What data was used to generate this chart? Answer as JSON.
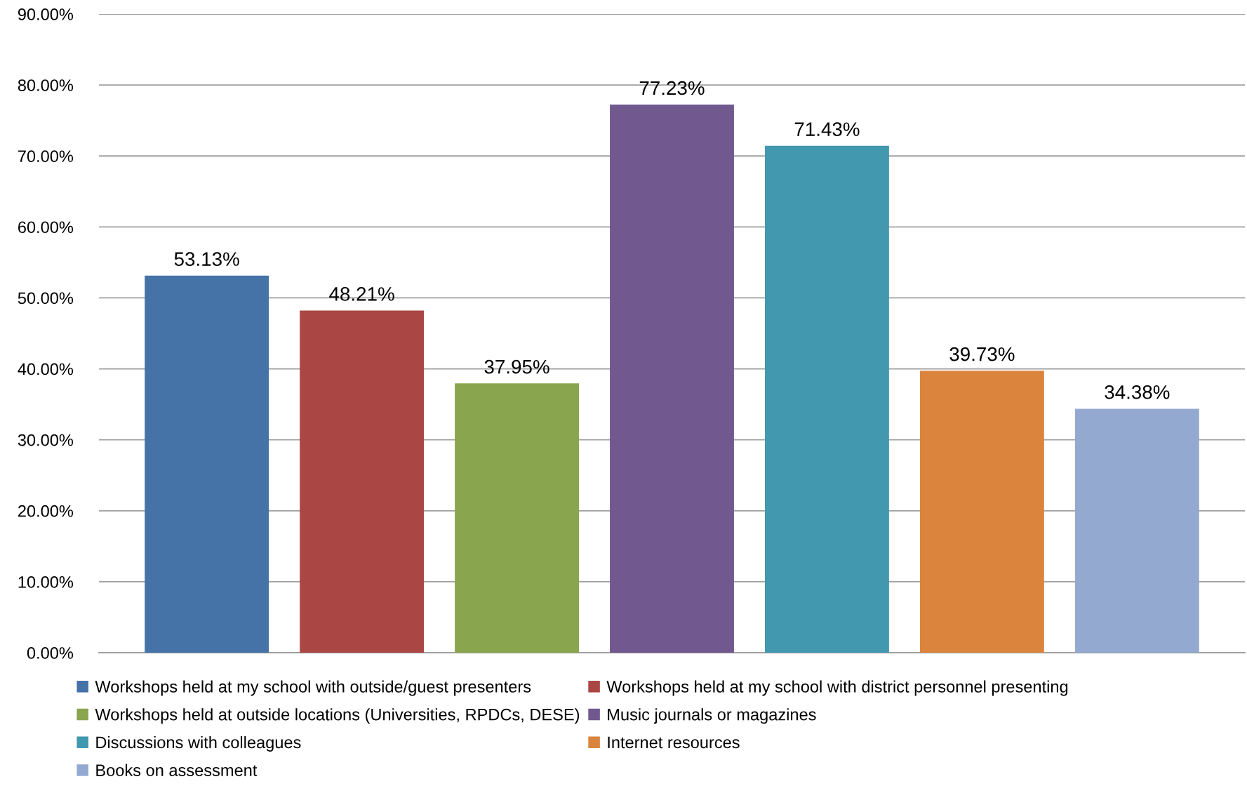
{
  "chart_data": {
    "type": "bar",
    "categories": [
      null
    ],
    "series": [
      {
        "name": "Workshops held at my school with outside/guest presenters",
        "color": "#4572a7",
        "values": [
          53.13
        ],
        "value_labels": [
          "53.13%"
        ]
      },
      {
        "name": "Workshops held at my school with district personnel presenting",
        "color": "#aa4643",
        "values": [
          48.21
        ],
        "value_labels": [
          "48.21%"
        ]
      },
      {
        "name": "Workshops held at outside locations (Universities, RPDCs, DESE)",
        "color": "#89a54e",
        "values": [
          37.95
        ],
        "value_labels": [
          "37.95%"
        ]
      },
      {
        "name": "Music journals or magazines",
        "color": "#71588f",
        "values": [
          77.23
        ],
        "value_labels": [
          "77.23%"
        ]
      },
      {
        "name": "Discussions with colleagues",
        "color": "#4198af",
        "values": [
          71.43
        ],
        "value_labels": [
          "71.43%"
        ]
      },
      {
        "name": "Internet resources",
        "color": "#db843d",
        "values": [
          39.73
        ],
        "value_labels": [
          "39.73%"
        ]
      },
      {
        "name": "Books on assessment",
        "color": "#93a9cf",
        "values": [
          34.38
        ],
        "value_labels": [
          "34.38%"
        ]
      }
    ],
    "ylim": [
      0,
      90
    ],
    "yticks": [
      {
        "value": 0,
        "label": "0.00%"
      },
      {
        "value": 10,
        "label": "10.00%"
      },
      {
        "value": 20,
        "label": "20.00%"
      },
      {
        "value": 30,
        "label": "30.00%"
      },
      {
        "value": 40,
        "label": "40.00%"
      },
      {
        "value": 50,
        "label": "50.00%"
      },
      {
        "value": 60,
        "label": "60.00%"
      },
      {
        "value": 70,
        "label": "70.00%"
      },
      {
        "value": 80,
        "label": "80.00%"
      },
      {
        "value": 90,
        "label": "90.00%"
      }
    ],
    "grid": "y",
    "legend": "bottom"
  }
}
